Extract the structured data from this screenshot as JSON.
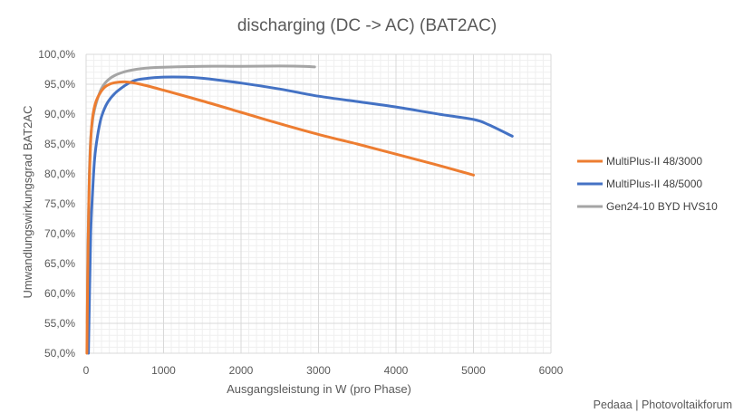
{
  "chart_data": {
    "type": "line",
    "title": "discharging (DC -> AC) (BAT2AC)",
    "xlabel": "Ausgangsleistung in W (pro Phase)",
    "ylabel": "Umwandlungswirkungsgrad BAT2AC",
    "xlim": [
      0,
      6000
    ],
    "ylim": [
      50,
      100
    ],
    "x_ticks": [
      0,
      1000,
      2000,
      3000,
      4000,
      5000,
      6000
    ],
    "x_tick_labels": [
      "0",
      "1000",
      "2000",
      "3000",
      "4000",
      "5000",
      "6000"
    ],
    "y_ticks": [
      50,
      55,
      60,
      65,
      70,
      75,
      80,
      85,
      90,
      95,
      100
    ],
    "y_tick_labels": [
      "50,0%",
      "55,0%",
      "60,0%",
      "65,0%",
      "70,0%",
      "75,0%",
      "80,0%",
      "85,0%",
      "90,0%",
      "95,0%",
      "100,0%"
    ],
    "grid": true,
    "legend_position": "right",
    "series": [
      {
        "name": "MultiPlus-II 48/3000",
        "color": "#ED7D31",
        "points": [
          [
            10,
            50
          ],
          [
            20,
            62
          ],
          [
            35,
            75
          ],
          [
            55,
            84
          ],
          [
            80,
            89
          ],
          [
            120,
            91.8
          ],
          [
            180,
            93.5
          ],
          [
            250,
            94.6
          ],
          [
            350,
            95.2
          ],
          [
            500,
            95.4
          ],
          [
            700,
            95
          ],
          [
            1000,
            94
          ],
          [
            1500,
            92.2
          ],
          [
            2000,
            90.3
          ],
          [
            2500,
            88.4
          ],
          [
            3000,
            86.6
          ],
          [
            3500,
            85
          ],
          [
            4000,
            83.3
          ],
          [
            4500,
            81.6
          ],
          [
            5000,
            79.8
          ]
        ]
      },
      {
        "name": "MultiPlus-II 48/5000",
        "color": "#4472C4",
        "points": [
          [
            30,
            50
          ],
          [
            45,
            60
          ],
          [
            60,
            70
          ],
          [
            80,
            76
          ],
          [
            110,
            82.5
          ],
          [
            150,
            86.5
          ],
          [
            200,
            89.6
          ],
          [
            280,
            92
          ],
          [
            400,
            93.8
          ],
          [
            600,
            95.5
          ],
          [
            800,
            96
          ],
          [
            1000,
            96.2
          ],
          [
            1250,
            96.2
          ],
          [
            1500,
            96
          ],
          [
            2000,
            95.2
          ],
          [
            2500,
            94.2
          ],
          [
            3000,
            93
          ],
          [
            3500,
            92.1
          ],
          [
            4000,
            91.2
          ],
          [
            4500,
            90.1
          ],
          [
            5000,
            89.1
          ],
          [
            5200,
            88.2
          ],
          [
            5500,
            86.3
          ]
        ]
      },
      {
        "name": "Gen24-10 BYD HVS10",
        "color": "#A5A5A5",
        "points": [
          [
            15,
            55
          ],
          [
            25,
            68
          ],
          [
            40,
            79
          ],
          [
            60,
            86
          ],
          [
            90,
            89.5
          ],
          [
            130,
            91.8
          ],
          [
            200,
            94.3
          ],
          [
            300,
            95.9
          ],
          [
            450,
            96.9
          ],
          [
            650,
            97.5
          ],
          [
            900,
            97.8
          ],
          [
            1500,
            98
          ],
          [
            2000,
            98
          ],
          [
            2500,
            98.05
          ],
          [
            2800,
            98
          ],
          [
            2950,
            97.9
          ]
        ]
      }
    ]
  },
  "watermark": "Pedaaa | Photovoltaikforum"
}
